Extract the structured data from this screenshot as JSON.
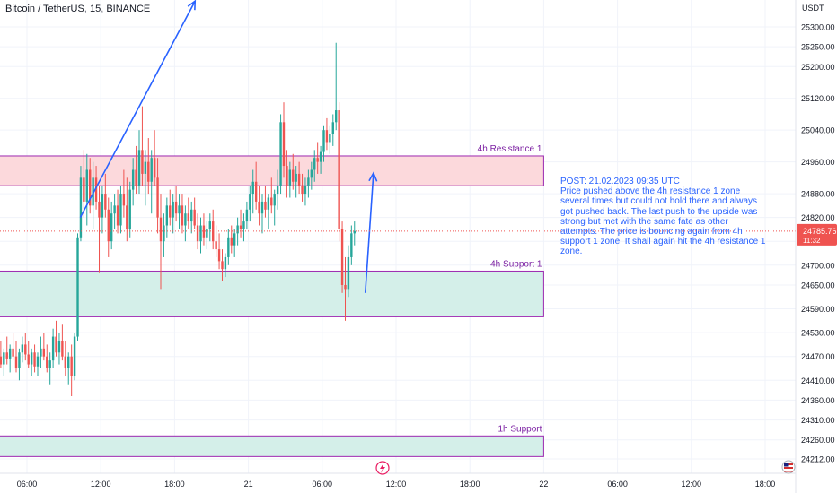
{
  "header": {
    "symbol": "Bitcoin / TetherUS",
    "interval": "15",
    "exchange": "BINANCE"
  },
  "price_axis": {
    "unit": "USDT",
    "last_price": "24785.76",
    "countdown": "11:32"
  },
  "note": {
    "title": "POST: 21.02.2023 09:35 UTC",
    "body": "Price pushed above the 4h resistance 1 zone several times but could not hold there and always got pushed back. The last push to the upside was strong but met with the same fate as other attempts. The price  is bouncing again from 4h support 1 zone. It shall again hit the 4h resistance 1 zone."
  },
  "colors": {
    "up": "#26a69a",
    "down": "#ef5350",
    "resistance_fill": "#fcd9dc",
    "resistance_border": "#9c27b0",
    "support_fill": "#d4efe9",
    "support_border": "#9c27b0",
    "arrow": "#2962ff",
    "price_tag": "#ef5350"
  },
  "chart_data": {
    "type": "candlestick",
    "ylim": [
      24190,
      25360
    ],
    "xlim": [
      "2023-02-20 01:30",
      "2023-02-22 22:00"
    ],
    "y_ticks": [
      24212,
      24260,
      24310,
      24360,
      24410,
      24470,
      24530,
      24590,
      24650,
      24700,
      24760,
      24820,
      24880,
      24960,
      25040,
      25120,
      25200,
      25250,
      25300
    ],
    "y_tick_labels": [
      "24212.00",
      "24260.00",
      "24310.00",
      "24360.00",
      "24410.00",
      "24470.00",
      "24530.00",
      "24590.00",
      "24650.00",
      "24700.00",
      "24760.00",
      "24820.00",
      "24880.00",
      "24960.00",
      "25040.00",
      "25120.00",
      "25200.00",
      "25250.00",
      "25300.00"
    ],
    "x_ticks": [
      {
        "t": "2023-02-20 06:00",
        "label": "06:00"
      },
      {
        "t": "2023-02-20 12:00",
        "label": "12:00"
      },
      {
        "t": "2023-02-20 18:00",
        "label": "18:00"
      },
      {
        "t": "2023-02-21 00:00",
        "label": "21"
      },
      {
        "t": "2023-02-21 06:00",
        "label": "06:00"
      },
      {
        "t": "2023-02-21 12:00",
        "label": "12:00"
      },
      {
        "t": "2023-02-21 18:00",
        "label": "18:00"
      },
      {
        "t": "2023-02-22 00:00",
        "label": "22"
      },
      {
        "t": "2023-02-22 06:00",
        "label": "06:00"
      },
      {
        "t": "2023-02-22 12:00",
        "label": "12:00"
      },
      {
        "t": "2023-02-22 18:00",
        "label": "18:00"
      }
    ],
    "zones": [
      {
        "label": "4h Resistance 1",
        "y_low": 24900,
        "y_high": 24975,
        "start": "2023-02-20 01:30",
        "end": "2023-02-22 00:00",
        "kind": "resistance"
      },
      {
        "label": "4h Support 1",
        "y_low": 24570,
        "y_high": 24685,
        "start": "2023-02-20 01:30",
        "end": "2023-02-22 00:00",
        "kind": "support"
      },
      {
        "label": "1h Support",
        "y_low": 24218,
        "y_high": 24270,
        "start": "2023-02-20 01:30",
        "end": "2023-02-22 00:00",
        "kind": "support"
      }
    ],
    "arrows": [
      {
        "from": [
          "2023-02-20 10:20",
          24820
        ],
        "to": [
          "2023-02-20 19:40",
          25365
        ]
      },
      {
        "from": [
          "2023-02-21 09:30",
          24630
        ],
        "to": [
          "2023-02-21 10:10",
          24932
        ]
      }
    ],
    "last_price": 24785.76,
    "candles": [
      {
        "t": "2023-02-20 01:30",
        "o": 24290,
        "h": 24330,
        "l": 24262,
        "c": 24315
      },
      {
        "t": "2023-02-20 01:45",
        "o": 24315,
        "h": 24400,
        "l": 24300,
        "c": 24385
      },
      {
        "t": "2023-02-20 02:00",
        "o": 24385,
        "h": 24420,
        "l": 24350,
        "c": 24400
      },
      {
        "t": "2023-02-20 02:15",
        "o": 24400,
        "h": 24480,
        "l": 24380,
        "c": 24460
      },
      {
        "t": "2023-02-20 02:30",
        "o": 24460,
        "h": 24510,
        "l": 24420,
        "c": 24440
      },
      {
        "t": "2023-02-20 02:45",
        "o": 24440,
        "h": 24520,
        "l": 24420,
        "c": 24500
      },
      {
        "t": "2023-02-20 03:00",
        "o": 24500,
        "h": 24530,
        "l": 24440,
        "c": 24455
      },
      {
        "t": "2023-02-20 03:15",
        "o": 24455,
        "h": 24500,
        "l": 24400,
        "c": 24420
      },
      {
        "t": "2023-02-20 03:30",
        "o": 24420,
        "h": 24480,
        "l": 24395,
        "c": 24470
      },
      {
        "t": "2023-02-20 03:45",
        "o": 24470,
        "h": 24510,
        "l": 24440,
        "c": 24450
      },
      {
        "t": "2023-02-20 04:00",
        "o": 24450,
        "h": 24490,
        "l": 24420,
        "c": 24480
      },
      {
        "t": "2023-02-20 04:15",
        "o": 24480,
        "h": 24520,
        "l": 24450,
        "c": 24465
      },
      {
        "t": "2023-02-20 04:30",
        "o": 24465,
        "h": 24500,
        "l": 24430,
        "c": 24490
      },
      {
        "t": "2023-02-20 04:45",
        "o": 24490,
        "h": 24530,
        "l": 24460,
        "c": 24470
      },
      {
        "t": "2023-02-20 05:00",
        "o": 24470,
        "h": 24510,
        "l": 24430,
        "c": 24440
      },
      {
        "t": "2023-02-20 05:15",
        "o": 24440,
        "h": 24490,
        "l": 24410,
        "c": 24480
      },
      {
        "t": "2023-02-20 05:30",
        "o": 24480,
        "h": 24520,
        "l": 24455,
        "c": 24500
      },
      {
        "t": "2023-02-20 05:45",
        "o": 24500,
        "h": 24530,
        "l": 24460,
        "c": 24475
      },
      {
        "t": "2023-02-20 06:00",
        "o": 24475,
        "h": 24510,
        "l": 24440,
        "c": 24450
      },
      {
        "t": "2023-02-20 06:15",
        "o": 24450,
        "h": 24490,
        "l": 24420,
        "c": 24480
      },
      {
        "t": "2023-02-20 06:30",
        "o": 24480,
        "h": 24500,
        "l": 24430,
        "c": 24445
      },
      {
        "t": "2023-02-20 06:45",
        "o": 24445,
        "h": 24480,
        "l": 24420,
        "c": 24470
      },
      {
        "t": "2023-02-20 07:00",
        "o": 24470,
        "h": 24520,
        "l": 24440,
        "c": 24490
      },
      {
        "t": "2023-02-20 07:15",
        "o": 24490,
        "h": 24530,
        "l": 24460,
        "c": 24470
      },
      {
        "t": "2023-02-20 07:30",
        "o": 24470,
        "h": 24500,
        "l": 24430,
        "c": 24440
      },
      {
        "t": "2023-02-20 07:45",
        "o": 24440,
        "h": 24480,
        "l": 24400,
        "c": 24460
      },
      {
        "t": "2023-02-20 08:00",
        "o": 24460,
        "h": 24540,
        "l": 24440,
        "c": 24520
      },
      {
        "t": "2023-02-20 08:15",
        "o": 24520,
        "h": 24560,
        "l": 24470,
        "c": 24480
      },
      {
        "t": "2023-02-20 08:30",
        "o": 24480,
        "h": 24530,
        "l": 24450,
        "c": 24510
      },
      {
        "t": "2023-02-20 08:45",
        "o": 24510,
        "h": 24550,
        "l": 24460,
        "c": 24470
      },
      {
        "t": "2023-02-20 09:00",
        "o": 24470,
        "h": 24510,
        "l": 24420,
        "c": 24440
      },
      {
        "t": "2023-02-20 09:15",
        "o": 24440,
        "h": 24480,
        "l": 24400,
        "c": 24470
      },
      {
        "t": "2023-02-20 09:30",
        "o": 24470,
        "h": 24500,
        "l": 24370,
        "c": 24420
      },
      {
        "t": "2023-02-20 09:45",
        "o": 24420,
        "h": 24530,
        "l": 24410,
        "c": 24520
      },
      {
        "t": "2023-02-20 10:00",
        "o": 24520,
        "h": 24780,
        "l": 24510,
        "c": 24770
      },
      {
        "t": "2023-02-20 10:15",
        "o": 24770,
        "h": 24950,
        "l": 24760,
        "c": 24920
      },
      {
        "t": "2023-02-20 10:30",
        "o": 24920,
        "h": 24990,
        "l": 24820,
        "c": 24860
      },
      {
        "t": "2023-02-20 10:45",
        "o": 24860,
        "h": 24980,
        "l": 24800,
        "c": 24940
      },
      {
        "t": "2023-02-20 11:00",
        "o": 24940,
        "h": 24970,
        "l": 24830,
        "c": 24850
      },
      {
        "t": "2023-02-20 11:15",
        "o": 24850,
        "h": 24960,
        "l": 24790,
        "c": 24920
      },
      {
        "t": "2023-02-20 11:30",
        "o": 24920,
        "h": 24950,
        "l": 24840,
        "c": 24860
      },
      {
        "t": "2023-02-20 11:45",
        "o": 24860,
        "h": 24900,
        "l": 24680,
        "c": 24820
      },
      {
        "t": "2023-02-20 12:00",
        "o": 24820,
        "h": 24900,
        "l": 24780,
        "c": 24880
      },
      {
        "t": "2023-02-20 12:15",
        "o": 24880,
        "h": 24930,
        "l": 24820,
        "c": 24840
      },
      {
        "t": "2023-02-20 12:30",
        "o": 24840,
        "h": 24870,
        "l": 24720,
        "c": 24760
      },
      {
        "t": "2023-02-20 12:45",
        "o": 24760,
        "h": 24860,
        "l": 24740,
        "c": 24830
      },
      {
        "t": "2023-02-20 13:00",
        "o": 24830,
        "h": 24880,
        "l": 24790,
        "c": 24850
      },
      {
        "t": "2023-02-20 13:15",
        "o": 24850,
        "h": 24890,
        "l": 24780,
        "c": 24800
      },
      {
        "t": "2023-02-20 13:30",
        "o": 24800,
        "h": 24900,
        "l": 24780,
        "c": 24880
      },
      {
        "t": "2023-02-20 13:45",
        "o": 24880,
        "h": 24940,
        "l": 24820,
        "c": 24850
      },
      {
        "t": "2023-02-20 14:00",
        "o": 24850,
        "h": 24920,
        "l": 24760,
        "c": 24790
      },
      {
        "t": "2023-02-20 14:15",
        "o": 24790,
        "h": 24910,
        "l": 24770,
        "c": 24890
      },
      {
        "t": "2023-02-20 14:30",
        "o": 24890,
        "h": 24970,
        "l": 24850,
        "c": 24940
      },
      {
        "t": "2023-02-20 14:45",
        "o": 24940,
        "h": 25000,
        "l": 24880,
        "c": 24900
      },
      {
        "t": "2023-02-20 15:00",
        "o": 24900,
        "h": 25040,
        "l": 24880,
        "c": 24990
      },
      {
        "t": "2023-02-20 15:15",
        "o": 24990,
        "h": 25100,
        "l": 24900,
        "c": 24930
      },
      {
        "t": "2023-02-20 15:30",
        "o": 24930,
        "h": 24990,
        "l": 24850,
        "c": 24960
      },
      {
        "t": "2023-02-20 15:45",
        "o": 24960,
        "h": 25020,
        "l": 24880,
        "c": 24910
      },
      {
        "t": "2023-02-20 16:00",
        "o": 24910,
        "h": 24990,
        "l": 24830,
        "c": 24970
      },
      {
        "t": "2023-02-20 16:15",
        "o": 24970,
        "h": 25040,
        "l": 24900,
        "c": 24920
      },
      {
        "t": "2023-02-20 16:30",
        "o": 24920,
        "h": 24970,
        "l": 24780,
        "c": 24820
      },
      {
        "t": "2023-02-20 16:45",
        "o": 24820,
        "h": 24880,
        "l": 24640,
        "c": 24760
      },
      {
        "t": "2023-02-20 17:00",
        "o": 24760,
        "h": 24830,
        "l": 24720,
        "c": 24800
      },
      {
        "t": "2023-02-20 17:15",
        "o": 24800,
        "h": 24870,
        "l": 24770,
        "c": 24850
      },
      {
        "t": "2023-02-20 17:30",
        "o": 24850,
        "h": 24890,
        "l": 24800,
        "c": 24820
      },
      {
        "t": "2023-02-20 17:45",
        "o": 24820,
        "h": 24880,
        "l": 24780,
        "c": 24860
      },
      {
        "t": "2023-02-20 18:00",
        "o": 24860,
        "h": 24900,
        "l": 24810,
        "c": 24830
      },
      {
        "t": "2023-02-20 18:15",
        "o": 24830,
        "h": 24880,
        "l": 24790,
        "c": 24850
      },
      {
        "t": "2023-02-20 18:30",
        "o": 24850,
        "h": 24880,
        "l": 24780,
        "c": 24800
      },
      {
        "t": "2023-02-20 18:45",
        "o": 24800,
        "h": 24850,
        "l": 24760,
        "c": 24830
      },
      {
        "t": "2023-02-20 19:00",
        "o": 24830,
        "h": 24870,
        "l": 24790,
        "c": 24810
      },
      {
        "t": "2023-02-20 19:15",
        "o": 24810,
        "h": 24860,
        "l": 24780,
        "c": 24840
      },
      {
        "t": "2023-02-20 19:30",
        "o": 24840,
        "h": 24870,
        "l": 24790,
        "c": 24800
      },
      {
        "t": "2023-02-20 19:45",
        "o": 24800,
        "h": 24830,
        "l": 24740,
        "c": 24760
      },
      {
        "t": "2023-02-20 20:00",
        "o": 24760,
        "h": 24820,
        "l": 24730,
        "c": 24800
      },
      {
        "t": "2023-02-20 20:15",
        "o": 24800,
        "h": 24830,
        "l": 24750,
        "c": 24770
      },
      {
        "t": "2023-02-20 20:30",
        "o": 24770,
        "h": 24810,
        "l": 24740,
        "c": 24790
      },
      {
        "t": "2023-02-20 20:45",
        "o": 24790,
        "h": 24830,
        "l": 24760,
        "c": 24810
      },
      {
        "t": "2023-02-20 21:00",
        "o": 24810,
        "h": 24840,
        "l": 24740,
        "c": 24760
      },
      {
        "t": "2023-02-20 21:15",
        "o": 24760,
        "h": 24800,
        "l": 24720,
        "c": 24740
      },
      {
        "t": "2023-02-20 21:30",
        "o": 24740,
        "h": 24780,
        "l": 24690,
        "c": 24710
      },
      {
        "t": "2023-02-20 21:45",
        "o": 24710,
        "h": 24740,
        "l": 24660,
        "c": 24690
      },
      {
        "t": "2023-02-20 22:00",
        "o": 24690,
        "h": 24730,
        "l": 24670,
        "c": 24720
      },
      {
        "t": "2023-02-20 22:15",
        "o": 24720,
        "h": 24790,
        "l": 24700,
        "c": 24770
      },
      {
        "t": "2023-02-20 22:30",
        "o": 24770,
        "h": 24800,
        "l": 24730,
        "c": 24750
      },
      {
        "t": "2023-02-20 22:45",
        "o": 24750,
        "h": 24790,
        "l": 24720,
        "c": 24780
      },
      {
        "t": "2023-02-20 23:00",
        "o": 24780,
        "h": 24820,
        "l": 24750,
        "c": 24800
      },
      {
        "t": "2023-02-20 23:15",
        "o": 24800,
        "h": 24840,
        "l": 24770,
        "c": 24790
      },
      {
        "t": "2023-02-20 23:30",
        "o": 24790,
        "h": 24830,
        "l": 24760,
        "c": 24810
      },
      {
        "t": "2023-02-20 23:45",
        "o": 24810,
        "h": 24860,
        "l": 24790,
        "c": 24840
      },
      {
        "t": "2023-02-21 00:00",
        "o": 24840,
        "h": 24900,
        "l": 24810,
        "c": 24880
      },
      {
        "t": "2023-02-21 00:15",
        "o": 24880,
        "h": 24940,
        "l": 24830,
        "c": 24910
      },
      {
        "t": "2023-02-21 00:30",
        "o": 24910,
        "h": 24960,
        "l": 24840,
        "c": 24860
      },
      {
        "t": "2023-02-21 00:45",
        "o": 24860,
        "h": 24900,
        "l": 24800,
        "c": 24830
      },
      {
        "t": "2023-02-21 01:00",
        "o": 24830,
        "h": 24880,
        "l": 24780,
        "c": 24860
      },
      {
        "t": "2023-02-21 01:15",
        "o": 24860,
        "h": 24900,
        "l": 24820,
        "c": 24840
      },
      {
        "t": "2023-02-21 01:30",
        "o": 24840,
        "h": 24880,
        "l": 24790,
        "c": 24870
      },
      {
        "t": "2023-02-21 01:45",
        "o": 24870,
        "h": 24920,
        "l": 24830,
        "c": 24850
      },
      {
        "t": "2023-02-21 02:00",
        "o": 24850,
        "h": 24890,
        "l": 24800,
        "c": 24880
      },
      {
        "t": "2023-02-21 02:15",
        "o": 24880,
        "h": 24940,
        "l": 24840,
        "c": 24900
      },
      {
        "t": "2023-02-21 02:30",
        "o": 24900,
        "h": 25080,
        "l": 24880,
        "c": 25060
      },
      {
        "t": "2023-02-21 02:45",
        "o": 25060,
        "h": 25110,
        "l": 24920,
        "c": 24950
      },
      {
        "t": "2023-02-21 03:00",
        "o": 24950,
        "h": 24990,
        "l": 24870,
        "c": 24900
      },
      {
        "t": "2023-02-21 03:15",
        "o": 24900,
        "h": 24960,
        "l": 24870,
        "c": 24940
      },
      {
        "t": "2023-02-21 03:30",
        "o": 24940,
        "h": 24980,
        "l": 24890,
        "c": 24910
      },
      {
        "t": "2023-02-21 03:45",
        "o": 24910,
        "h": 24950,
        "l": 24870,
        "c": 24930
      },
      {
        "t": "2023-02-21 04:00",
        "o": 24930,
        "h": 24960,
        "l": 24880,
        "c": 24900
      },
      {
        "t": "2023-02-21 04:15",
        "o": 24900,
        "h": 24930,
        "l": 24860,
        "c": 24880
      },
      {
        "t": "2023-02-21 04:30",
        "o": 24880,
        "h": 24920,
        "l": 24850,
        "c": 24900
      },
      {
        "t": "2023-02-21 04:45",
        "o": 24900,
        "h": 24940,
        "l": 24870,
        "c": 24920
      },
      {
        "t": "2023-02-21 05:00",
        "o": 24920,
        "h": 24960,
        "l": 24890,
        "c": 24940
      },
      {
        "t": "2023-02-21 05:15",
        "o": 24940,
        "h": 24990,
        "l": 24910,
        "c": 24970
      },
      {
        "t": "2023-02-21 05:30",
        "o": 24970,
        "h": 25010,
        "l": 24930,
        "c": 24960
      },
      {
        "t": "2023-02-21 05:45",
        "o": 24960,
        "h": 25000,
        "l": 24930,
        "c": 24985
      },
      {
        "t": "2023-02-21 06:00",
        "o": 24985,
        "h": 25050,
        "l": 24960,
        "c": 25040
      },
      {
        "t": "2023-02-21 06:15",
        "o": 25040,
        "h": 25070,
        "l": 24990,
        "c": 25010
      },
      {
        "t": "2023-02-21 06:30",
        "o": 25010,
        "h": 25050,
        "l": 24980,
        "c": 25030
      },
      {
        "t": "2023-02-21 06:45",
        "o": 25030,
        "h": 25080,
        "l": 25000,
        "c": 25060
      },
      {
        "t": "2023-02-21 07:00",
        "o": 25060,
        "h": 25260,
        "l": 25040,
        "c": 25090
      },
      {
        "t": "2023-02-21 07:15",
        "o": 25090,
        "h": 25110,
        "l": 24760,
        "c": 24790
      },
      {
        "t": "2023-02-21 07:30",
        "o": 24790,
        "h": 24810,
        "l": 24630,
        "c": 24650
      },
      {
        "t": "2023-02-21 07:45",
        "o": 24650,
        "h": 24720,
        "l": 24560,
        "c": 24640
      },
      {
        "t": "2023-02-21 08:00",
        "o": 24640,
        "h": 24750,
        "l": 24620,
        "c": 24720
      },
      {
        "t": "2023-02-21 08:15",
        "o": 24720,
        "h": 24800,
        "l": 24700,
        "c": 24780
      },
      {
        "t": "2023-02-21 08:30",
        "o": 24780,
        "h": 24810,
        "l": 24750,
        "c": 24786
      }
    ]
  }
}
